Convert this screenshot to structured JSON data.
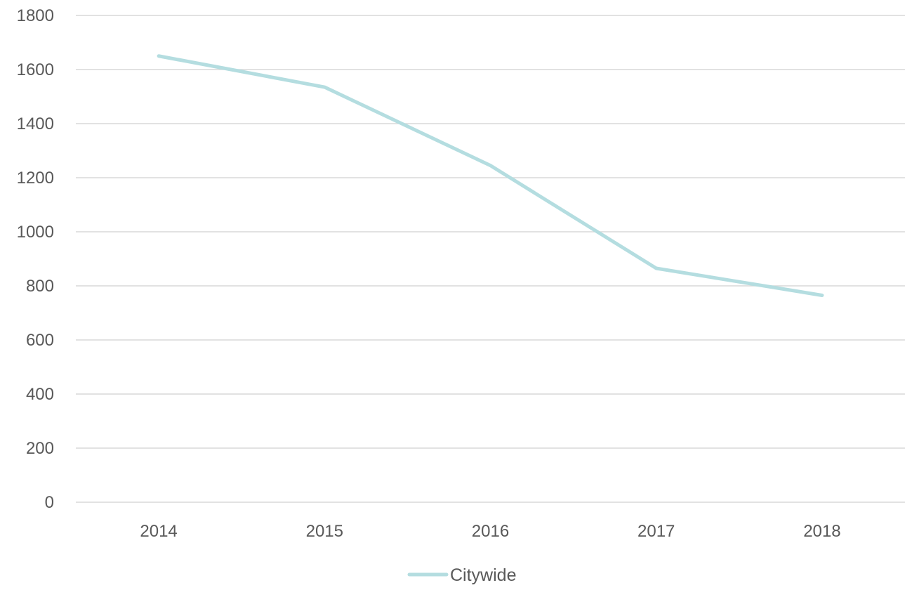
{
  "chart_data": {
    "type": "line",
    "title": "",
    "xlabel": "",
    "ylabel": "",
    "categories": [
      "2014",
      "2015",
      "2016",
      "2017",
      "2018"
    ],
    "series": [
      {
        "name": "Citywide",
        "color": "#b4dde0",
        "values": [
          1650,
          1535,
          1245,
          865,
          765
        ]
      }
    ],
    "ylim": [
      0,
      1800
    ],
    "y_ticks": [
      0,
      200,
      400,
      600,
      800,
      1000,
      1200,
      1400,
      1600,
      1800
    ],
    "y_tick_labels": [
      "0",
      "200",
      "400",
      "600",
      "800",
      "1000",
      "1200",
      "1400",
      "1600",
      "1800"
    ],
    "grid": true,
    "legend_position": "bottom",
    "gridline_color": "#d9d9d9",
    "text_color": "#595959"
  }
}
